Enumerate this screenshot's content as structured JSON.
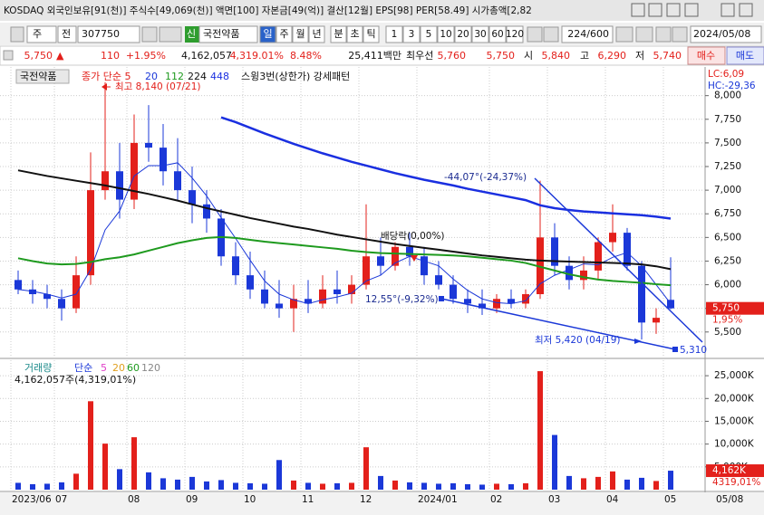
{
  "title_bar": {
    "text": "KOSDAQ 외국인보유[91(천)] 주식수[49,069(천)] 액면[100] 자본금[49(억)] 결산[12월] EPS[98] PER[58.49] 시가총액[2,82"
  },
  "toolbar": {
    "market": "주",
    "prev": "전",
    "code": "307750",
    "badge": "신",
    "name": "국전약품",
    "periods": [
      "일",
      "주",
      "월",
      "년",
      "분",
      "초",
      "틱"
    ],
    "intervals": [
      "1",
      "3",
      "5",
      "10",
      "20",
      "30",
      "60",
      "120"
    ],
    "count": "224/600",
    "date": "2024/05/08"
  },
  "quote_bar": {
    "price": "5,750",
    "arrow": "▲",
    "change": "110",
    "change_pct": "+1.95%",
    "volume": "4,162,057",
    "volume_pct": "4,319.01%",
    "turnover": "8.48%",
    "amount": "25,411백만",
    "best_label": "최우선",
    "ask": "5,760",
    "bid": "5,750",
    "open_label": "시",
    "open": "5,840",
    "high_label": "고",
    "high": "6,290",
    "low_label": "저",
    "low": "5,740",
    "buy": "매수",
    "sell": "매도"
  },
  "chart_data": [
    {
      "type": "candlestick",
      "name": "국전약품",
      "ma_label": "종가 단순 5",
      "extra_legend": "스윙3번(상한가) 강세패턴",
      "categories": [
        "2023/06",
        null,
        null,
        "07",
        null,
        null,
        null,
        null,
        "08",
        null,
        null,
        null,
        "09",
        null,
        null,
        null,
        "10",
        null,
        null,
        null,
        "11",
        null,
        null,
        null,
        "12",
        null,
        null,
        null,
        "2024/01",
        null,
        null,
        null,
        null,
        "02",
        null,
        null,
        null,
        "03",
        null,
        null,
        null,
        "04",
        null,
        null,
        null,
        "05"
      ],
      "open": [
        6050,
        5950,
        5900,
        5850,
        5750,
        6100,
        7000,
        7200,
        6900,
        7500,
        7450,
        7200,
        7000,
        6850,
        6700,
        6300,
        6100,
        5950,
        5800,
        5750,
        5850,
        5800,
        5950,
        5900,
        6000,
        6300,
        6200,
        6400,
        6300,
        6100,
        6000,
        5850,
        5800,
        5750,
        5850,
        5800,
        5900,
        6500,
        6200,
        6050,
        6150,
        6450,
        6550,
        6200,
        5600,
        5840
      ],
      "high": [
        6150,
        6050,
        6000,
        5950,
        6300,
        7400,
        8140,
        7500,
        7800,
        7900,
        7700,
        7550,
        7250,
        7000,
        6800,
        6450,
        6350,
        6150,
        6050,
        6000,
        6050,
        6100,
        6150,
        6100,
        6850,
        6500,
        6450,
        6550,
        6400,
        6250,
        6100,
        5950,
        5950,
        5900,
        5950,
        5950,
        7100,
        6650,
        6300,
        6300,
        6500,
        6850,
        6600,
        6250,
        5750,
        6290
      ],
      "low": [
        5900,
        5800,
        5750,
        5620,
        5700,
        6000,
        6900,
        6700,
        6800,
        7300,
        7050,
        6900,
        6650,
        6550,
        6200,
        6000,
        5850,
        5750,
        5650,
        5500,
        5700,
        5750,
        5800,
        5800,
        5950,
        6100,
        6150,
        6200,
        6000,
        5950,
        5800,
        5700,
        5680,
        5700,
        5750,
        5750,
        5850,
        6100,
        5950,
        5950,
        6050,
        6350,
        6150,
        5420,
        5480,
        5740
      ],
      "close": [
        5950,
        5900,
        5850,
        5750,
        6100,
        7000,
        7200,
        6900,
        7500,
        7450,
        7200,
        7000,
        6850,
        6700,
        6300,
        6100,
        5950,
        5800,
        5750,
        5850,
        5800,
        5950,
        5900,
        6000,
        6300,
        6200,
        6400,
        6300,
        6100,
        6000,
        5850,
        5800,
        5750,
        5850,
        5800,
        5900,
        6500,
        6200,
        6050,
        6150,
        6450,
        6550,
        6200,
        5600,
        5650,
        5750
      ],
      "up_color": "#e3201b",
      "down_color": "#1b38d8",
      "series": [
        {
          "name": "20",
          "color": "#1b38d8",
          "values": [
            5950,
            5930,
            5900,
            5860,
            5900,
            6160,
            6580,
            6780,
            7150,
            7260,
            7260,
            7290,
            7130,
            6940,
            6710,
            6490,
            6260,
            6040,
            5900,
            5840,
            5800,
            5840,
            5870,
            5910,
            6040,
            6100,
            6230,
            6300,
            6250,
            6200,
            6060,
            5940,
            5850,
            5810,
            5800,
            5830,
            6010,
            6100,
            6160,
            6220,
            6210,
            6290,
            6340,
            6200,
            6000,
            5800
          ]
        },
        {
          "name": "112",
          "color": "#1e9a1e",
          "values": [
            6280,
            6250,
            6225,
            6215,
            6220,
            6240,
            6270,
            6290,
            6320,
            6360,
            6400,
            6440,
            6470,
            6495,
            6505,
            6495,
            6475,
            6455,
            6440,
            6425,
            6410,
            6395,
            6380,
            6360,
            6345,
            6335,
            6330,
            6325,
            6320,
            6315,
            6310,
            6300,
            6285,
            6270,
            6255,
            6230,
            6190,
            6150,
            6110,
            6080,
            6055,
            6040,
            6030,
            6020,
            6005,
            5995
          ]
        },
        {
          "name": "224",
          "color": "#111111",
          "values": [
            7210,
            7180,
            7150,
            7125,
            7100,
            7075,
            7050,
            7020,
            6990,
            6960,
            6925,
            6890,
            6850,
            6810,
            6775,
            6740,
            6705,
            6675,
            6645,
            6615,
            6590,
            6560,
            6530,
            6505,
            6480,
            6455,
            6430,
            6410,
            6390,
            6370,
            6350,
            6330,
            6310,
            6295,
            6280,
            6265,
            6255,
            6250,
            6245,
            6240,
            6235,
            6230,
            6225,
            6215,
            6195,
            6165
          ]
        },
        {
          "name": "448",
          "color": "#1a2fe0",
          "values": [
            null,
            null,
            null,
            null,
            null,
            null,
            null,
            null,
            null,
            null,
            null,
            null,
            null,
            null,
            7770,
            7720,
            7660,
            7600,
            7545,
            7490,
            7440,
            7390,
            7345,
            7300,
            7260,
            7220,
            7180,
            7145,
            7110,
            7080,
            7050,
            7015,
            6985,
            6955,
            6925,
            6895,
            6840,
            6810,
            6790,
            6775,
            6765,
            6755,
            6745,
            6735,
            6720,
            6700
          ]
        }
      ],
      "ylim": [
        5230,
        8150
      ],
      "yticks": [
        {
          "value": 5500,
          "label": "5,500"
        },
        {
          "value": 5750,
          "label": "5,750"
        },
        {
          "value": 6000,
          "label": "6,000"
        },
        {
          "value": 6250,
          "label": "6,250"
        },
        {
          "value": 6500,
          "label": "6,500"
        },
        {
          "value": 6750,
          "label": "6,750"
        },
        {
          "value": 7000,
          "label": "7,000"
        },
        {
          "value": 7250,
          "label": "7,250"
        },
        {
          "value": 7500,
          "label": "7,500"
        },
        {
          "value": 7750,
          "label": "7,750"
        },
        {
          "value": 8000,
          "label": "8,000"
        }
      ],
      "grid": true,
      "annotations": [
        "최고 8,140 (07/21)",
        "-44,07°(-24,37%)",
        "배당락(0,00%)",
        "12,55°(-9,32%)",
        "최저 5,420 (04/19)",
        "5,310"
      ],
      "axis_top_labels": [
        "LC:6,09",
        "HC:-29,36"
      ],
      "last_label": "5,750",
      "last_change": "1,95%"
    },
    {
      "type": "bar",
      "title": "거래량",
      "ma_label": "단순",
      "ma_periods": [
        {
          "name": "5",
          "color": "#e040c8"
        },
        {
          "name": "20",
          "color": "#e0a020"
        },
        {
          "name": "60",
          "color": "#1e9a1e"
        },
        {
          "name": "120",
          "color": "#888888"
        }
      ],
      "caption": "4,162,057주(4,319,01%)",
      "values": [
        1500,
        1200,
        1300,
        1600,
        3500,
        19400,
        10100,
        4500,
        11500,
        3800,
        2500,
        2200,
        2800,
        1800,
        2100,
        1500,
        1400,
        1300,
        6500,
        2000,
        1500,
        1300,
        1400,
        1500,
        9300,
        3000,
        2000,
        1600,
        1500,
        1300,
        1400,
        1200,
        1100,
        1300,
        1200,
        1400,
        26000,
        12000,
        3000,
        2500,
        2800,
        4000,
        2200,
        2600,
        1900,
        4162
      ],
      "ylim": [
        0,
        28000
      ],
      "yticks": [
        {
          "value": 5000,
          "label": "5,000K"
        },
        {
          "value": 10000,
          "label": "10,000K"
        },
        {
          "value": 15000,
          "label": "15,000K"
        },
        {
          "value": 20000,
          "label": "20,000K"
        },
        {
          "value": 25000,
          "label": "25,000K"
        }
      ],
      "grid": true,
      "last_label": "4,162K",
      "last_pct": "4319,01%",
      "x_end_label": "05/08"
    }
  ]
}
